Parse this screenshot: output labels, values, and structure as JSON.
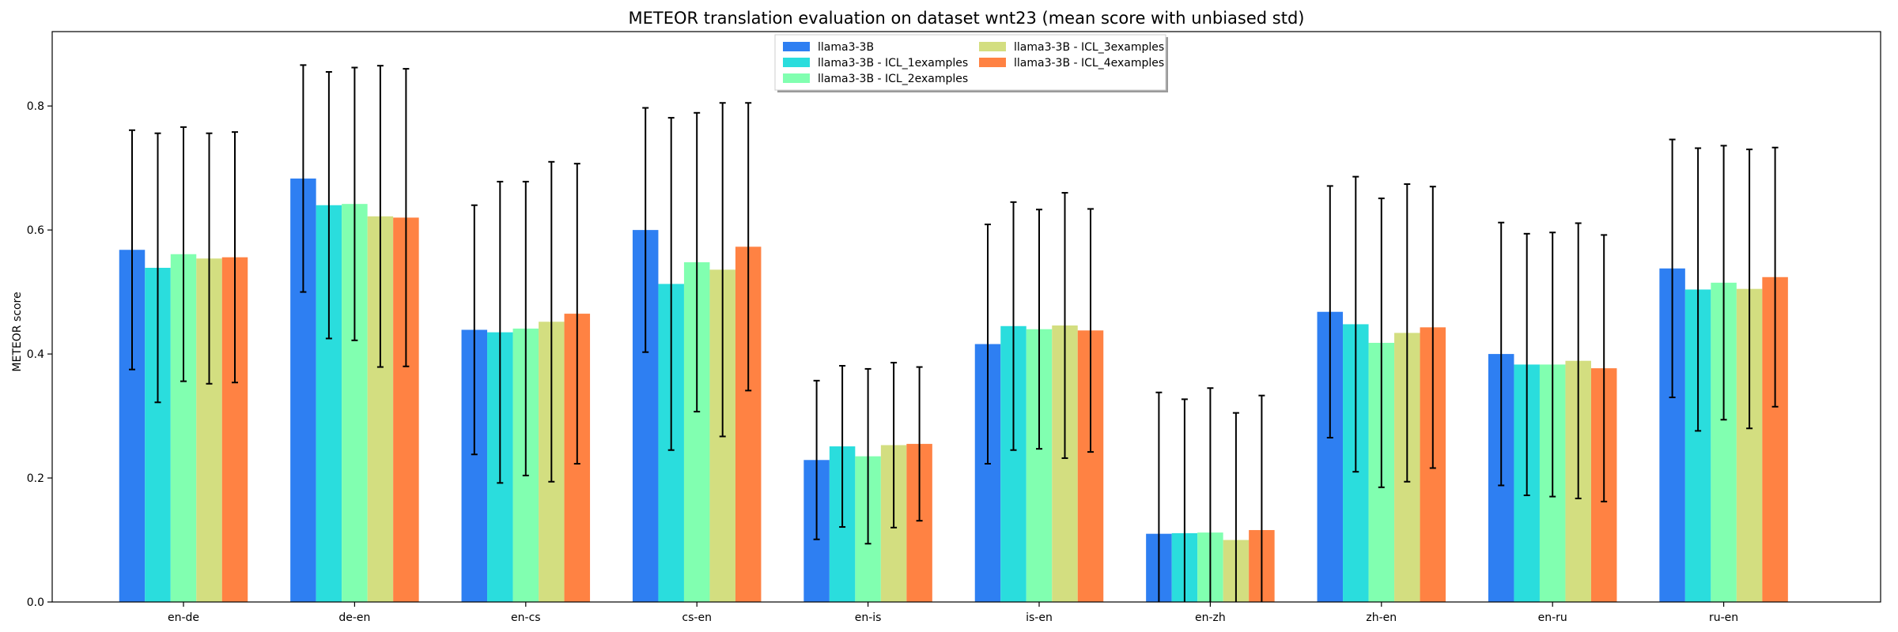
{
  "chart_data": {
    "type": "bar",
    "title": "METEOR translation evaluation on dataset wnt23 (mean score with unbiased std)",
    "xlabel": "",
    "ylabel": "METEOR score",
    "ylim": [
      0,
      0.92
    ],
    "yticks": [
      0.0,
      0.2,
      0.4,
      0.6,
      0.8
    ],
    "grid": false,
    "legend_position": "top-center",
    "categories": [
      "en-de",
      "de-en",
      "en-cs",
      "cs-en",
      "en-is",
      "is-en",
      "en-zh",
      "zh-en",
      "en-ru",
      "ru-en"
    ],
    "series": [
      {
        "name": "llama3-3B",
        "color": "#2e7ff2",
        "values": [
          0.568,
          0.683,
          0.439,
          0.6,
          0.229,
          0.416,
          0.11,
          0.468,
          0.4,
          0.538
        ],
        "std": [
          0.193,
          0.183,
          0.201,
          0.197,
          0.128,
          0.193,
          0.228,
          0.203,
          0.212,
          0.208
        ]
      },
      {
        "name": "llama3-3B - ICL_1examples",
        "color": "#2adddd",
        "values": [
          0.539,
          0.64,
          0.435,
          0.513,
          0.251,
          0.445,
          0.111,
          0.448,
          0.383,
          0.504
        ],
        "std": [
          0.217,
          0.215,
          0.243,
          0.268,
          0.13,
          0.2,
          0.216,
          0.238,
          0.211,
          0.228
        ]
      },
      {
        "name": "llama3-3B - ICL_2examples",
        "color": "#81ffb0",
        "values": [
          0.561,
          0.642,
          0.441,
          0.548,
          0.235,
          0.44,
          0.112,
          0.418,
          0.383,
          0.515
        ],
        "std": [
          0.205,
          0.22,
          0.237,
          0.241,
          0.141,
          0.193,
          0.233,
          0.233,
          0.213,
          0.221
        ]
      },
      {
        "name": "llama3-3B - ICL_3examples",
        "color": "#d3de80",
        "values": [
          0.554,
          0.622,
          0.452,
          0.536,
          0.253,
          0.446,
          0.1,
          0.434,
          0.389,
          0.505
        ],
        "std": [
          0.202,
          0.243,
          0.258,
          0.269,
          0.133,
          0.214,
          0.205,
          0.24,
          0.222,
          0.225
        ]
      },
      {
        "name": "llama3-3B - ICL_4examples",
        "color": "#ff8243",
        "values": [
          0.556,
          0.62,
          0.465,
          0.573,
          0.255,
          0.438,
          0.116,
          0.443,
          0.377,
          0.524
        ],
        "std": [
          0.202,
          0.24,
          0.242,
          0.232,
          0.124,
          0.196,
          0.217,
          0.227,
          0.215,
          0.209
        ]
      }
    ]
  }
}
